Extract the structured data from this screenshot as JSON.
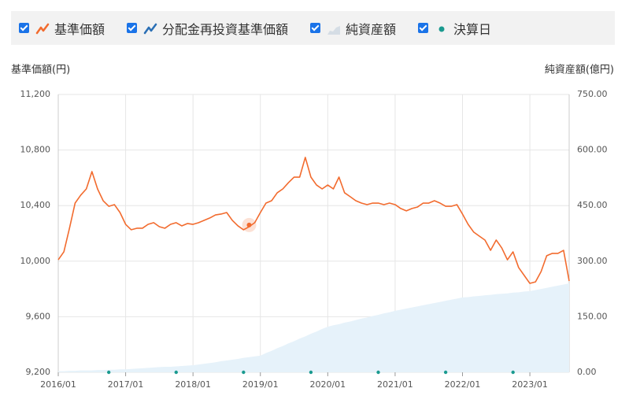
{
  "chart_data": {
    "type": "line",
    "y_axis_label": "基準価額(円)",
    "y2_axis_label": "純資産額(億円)",
    "x": [
      "2016/01",
      "2016/02",
      "2016/03",
      "2016/04",
      "2016/05",
      "2016/06",
      "2016/07",
      "2016/08",
      "2016/09",
      "2016/10",
      "2016/11",
      "2016/12",
      "2017/01",
      "2017/02",
      "2017/03",
      "2017/04",
      "2017/05",
      "2017/06",
      "2017/07",
      "2017/08",
      "2017/09",
      "2017/10",
      "2017/11",
      "2017/12",
      "2018/01",
      "2018/02",
      "2018/03",
      "2018/04",
      "2018/05",
      "2018/06",
      "2018/07",
      "2018/08",
      "2018/09",
      "2018/10",
      "2018/11",
      "2018/12",
      "2019/01",
      "2019/02",
      "2019/03",
      "2019/04",
      "2019/05",
      "2019/06",
      "2019/07",
      "2019/08",
      "2019/09",
      "2019/10",
      "2019/11",
      "2019/12",
      "2020/01",
      "2020/02",
      "2020/03",
      "2020/04",
      "2020/05",
      "2020/06",
      "2020/07",
      "2020/08",
      "2020/09",
      "2020/10",
      "2020/11",
      "2020/12",
      "2021/01",
      "2021/02",
      "2021/03",
      "2021/04",
      "2021/05",
      "2021/06",
      "2021/07",
      "2021/08",
      "2021/09",
      "2021/10",
      "2021/11",
      "2021/12",
      "2022/01",
      "2022/02",
      "2022/03",
      "2022/04",
      "2022/05",
      "2022/06",
      "2022/07",
      "2022/08",
      "2022/09",
      "2022/10",
      "2022/11",
      "2022/12",
      "2023/01",
      "2023/02",
      "2023/03",
      "2023/04",
      "2023/05",
      "2023/06",
      "2023/07",
      "2023/08"
    ],
    "series": [
      {
        "name": "基準価額",
        "color": "#f26b2e",
        "values": [
          10010,
          10067,
          10237,
          10418,
          10475,
          10520,
          10645,
          10520,
          10435,
          10395,
          10407,
          10350,
          10265,
          10226,
          10237,
          10237,
          10265,
          10277,
          10248,
          10237,
          10265,
          10277,
          10254,
          10271,
          10265,
          10277,
          10294,
          10311,
          10333,
          10339,
          10350,
          10294,
          10254,
          10226,
          10248,
          10277,
          10350,
          10418,
          10435,
          10492,
          10520,
          10565,
          10605,
          10605,
          10747,
          10605,
          10548,
          10520,
          10548,
          10520,
          10605,
          10492,
          10464,
          10435,
          10418,
          10407,
          10418,
          10418,
          10407,
          10418,
          10407,
          10379,
          10362,
          10379,
          10390,
          10418,
          10418,
          10435,
          10418,
          10395,
          10395,
          10407,
          10339,
          10265,
          10209,
          10180,
          10152,
          10078,
          10152,
          10095,
          10010,
          10067,
          9954,
          9897,
          9840,
          9851,
          9925,
          10039,
          10056,
          10056,
          10078,
          9857
        ]
      },
      {
        "name": "分配金再投資基準価額",
        "color": "#2a6fb5"
      },
      {
        "name": "純資産額",
        "color": "#e6f2fa",
        "axis": "y2",
        "values": [
          3,
          3,
          4,
          4,
          5,
          5,
          5,
          6,
          6,
          7,
          7,
          8,
          8,
          9,
          10,
          11,
          12,
          13,
          14,
          15,
          15,
          16,
          17,
          18,
          19,
          21,
          23,
          25,
          27,
          30,
          32,
          34,
          36,
          39,
          41,
          43,
          45,
          52,
          58,
          65,
          71,
          78,
          84,
          91,
          97,
          104,
          110,
          117,
          123,
          127,
          130,
          134,
          137,
          141,
          145,
          148,
          152,
          155,
          159,
          162,
          166,
          169,
          172,
          175,
          178,
          181,
          184,
          187,
          190,
          193,
          196,
          199,
          202,
          203,
          205,
          206,
          208,
          209,
          211,
          212,
          213,
          215,
          216,
          218,
          219,
          222,
          225,
          228,
          231,
          234,
          237,
          240
        ]
      },
      {
        "name": "決算日",
        "color": "#1a9a8f",
        "x": [
          "2016/10",
          "2017/10",
          "2018/10",
          "2019/10",
          "2020/10",
          "2021/10",
          "2022/10"
        ]
      }
    ],
    "highlight": {
      "x": "2018/11",
      "value": 10260
    },
    "xlim": [
      "2016/01",
      "2023/08"
    ],
    "xticks": [
      "2016/01",
      "2017/01",
      "2018/01",
      "2019/01",
      "2020/01",
      "2021/01",
      "2022/01",
      "2023/01"
    ],
    "ylim": [
      9200,
      11200
    ],
    "yticks": [
      {
        "value": 9200,
        "label": "9,200"
      },
      {
        "value": 9600,
        "label": "9,600"
      },
      {
        "value": 10000,
        "label": "10,000"
      },
      {
        "value": 10400,
        "label": "10,400"
      },
      {
        "value": 10800,
        "label": "10,800"
      },
      {
        "value": 11200,
        "label": "11,200"
      }
    ],
    "y2lim": [
      0,
      750
    ],
    "y2ticks": [
      {
        "value": 0,
        "label": "0.00"
      },
      {
        "value": 150,
        "label": "150.00"
      },
      {
        "value": 300,
        "label": "300.00"
      },
      {
        "value": 450,
        "label": "450.00"
      },
      {
        "value": 600,
        "label": "600.00"
      },
      {
        "value": 750,
        "label": "750.00"
      }
    ],
    "grid": true
  }
}
